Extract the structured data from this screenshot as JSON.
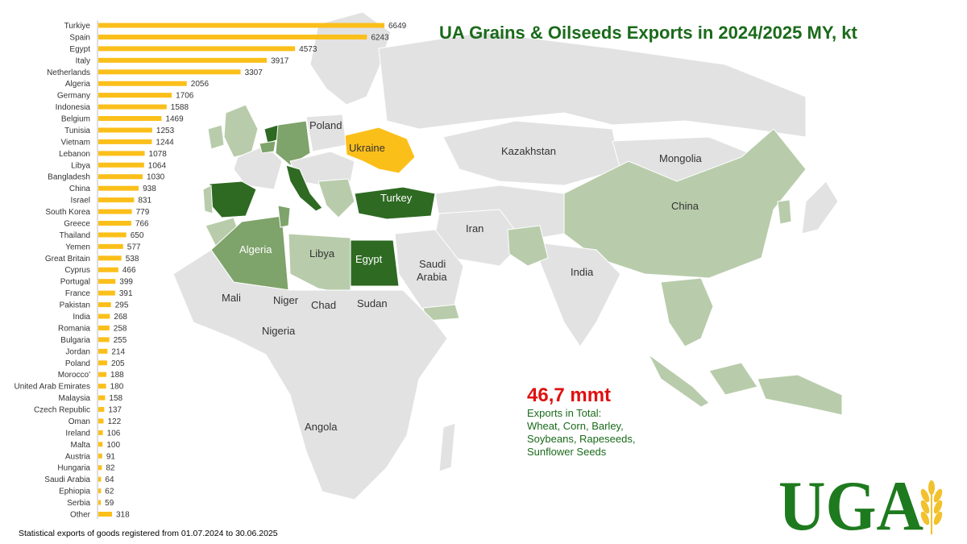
{
  "title": "UA Grains & Oilseeds Exports in 2024/2025 MY, kt",
  "colors": {
    "bar": "#fbbf1a",
    "title": "#1a6a1a",
    "total": "#e01010",
    "map_base": "#e2e2e2",
    "map_light": "#b8ccab",
    "map_mid": "#7ea36b",
    "map_dark": "#2e6a22",
    "ukraine": "#fbbf1a"
  },
  "map_labels": {
    "poland": "Poland",
    "ukraine": "Ukraine",
    "kazakhstan": "Kazakhstan",
    "mongolia": "Mongolia",
    "turkey": "Turkey",
    "china": "China",
    "iran": "Iran",
    "algeria": "Algeria",
    "libya": "Libya",
    "egypt": "Egypt",
    "saudi_arabia_line1": "Saudi",
    "saudi_arabia_line2": "Arabia",
    "india": "India",
    "mali": "Mali",
    "niger": "Niger",
    "chad": "Chad",
    "sudan": "Sudan",
    "nigeria": "Nigeria",
    "angola": "Angola"
  },
  "total": {
    "value": "46,7 mmt",
    "line1": "Exports in Total:",
    "line2": "Wheat, Corn, Barley,",
    "line3": "Soybeans, Rapeseeds,",
    "line4": "Sunflower Seeds"
  },
  "footnote": "Statistical exports of goods registered from 01.07.2024 to 30.06.2025",
  "logo": {
    "text": "UGA"
  },
  "chart_data": {
    "type": "bar",
    "orientation": "horizontal",
    "title": "UA Grains & Oilseeds Exports in 2024/2025 MY, kt",
    "categories": [
      "Turkiye",
      "Spain",
      "Egypt",
      "Italy",
      "Netherlands",
      "Algeria",
      "Germany",
      "Indonesia",
      "Belgium",
      "Tunisia",
      "Vietnam",
      "Lebanon",
      "Libya",
      "Bangladesh",
      "China",
      "Israel",
      "South Korea",
      "Greece",
      "Thailand",
      "Yemen",
      "Great Britain",
      "Cyprus",
      "Portugal",
      "France",
      "Pakistan",
      "India",
      "Romania",
      "Bulgaria",
      "Jordan",
      "Poland",
      "Morocco'",
      "United Arab Emirates",
      "Malaysia",
      "Czech Republic",
      "Oman",
      "Ireland",
      "Malta",
      "Austria",
      "Hungaria",
      "Saudi Arabia",
      "Ephiopia",
      "Serbia",
      "Other"
    ],
    "values": [
      6649,
      6243,
      4573,
      3917,
      3307,
      2056,
      1706,
      1588,
      1469,
      1253,
      1244,
      1078,
      1064,
      1030,
      938,
      831,
      779,
      766,
      650,
      577,
      538,
      466,
      399,
      391,
      295,
      268,
      258,
      255,
      214,
      205,
      188,
      180,
      158,
      137,
      122,
      106,
      100,
      91,
      82,
      64,
      62,
      59,
      318
    ],
    "xlim": [
      0,
      6649
    ],
    "grid": false,
    "legend": "none",
    "data_labels": true
  }
}
